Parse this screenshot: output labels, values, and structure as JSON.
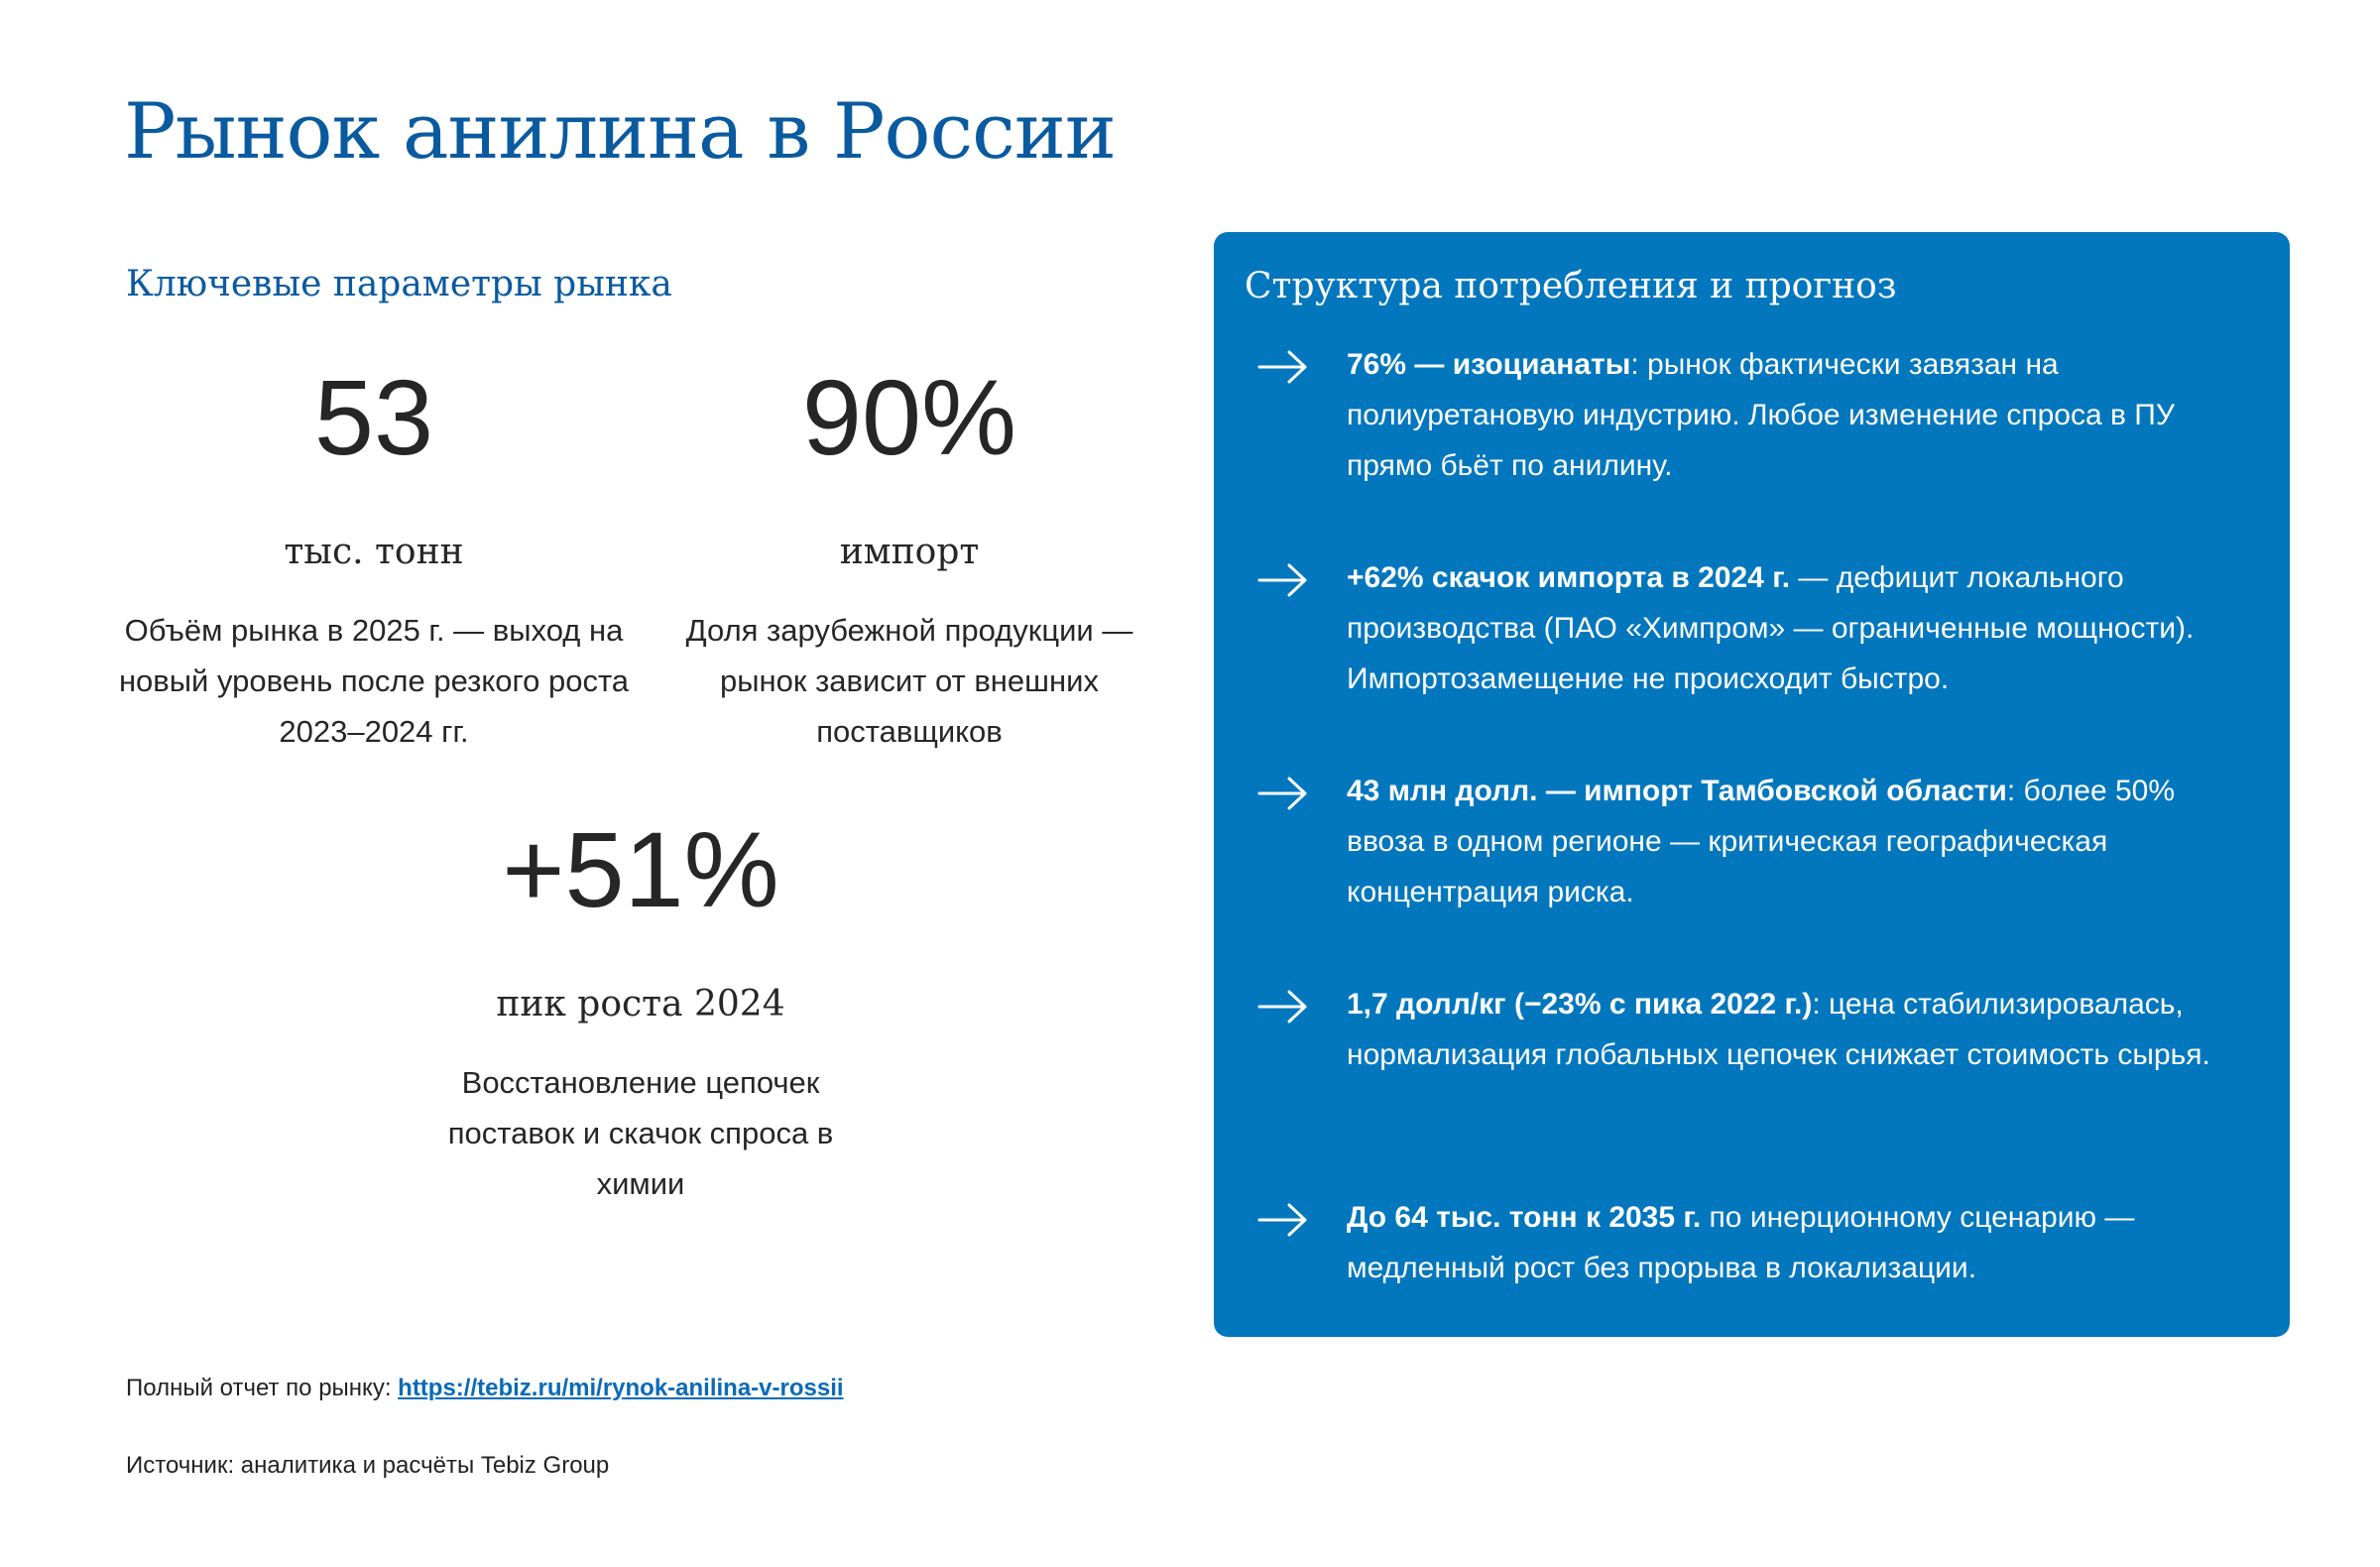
{
  "page": {
    "title": "Рынок анилина в России"
  },
  "key_params": {
    "heading": "Ключевые параметры рынка",
    "stats": [
      {
        "value": "53",
        "unit": "тыс. тонн",
        "description": "Объём рынка в 2025 г. — выход на новый уровень после резкого роста 2023–2024 гг."
      },
      {
        "value": "90%",
        "unit": "импорт",
        "description": "Доля зарубежной продукции — рынок зависит от внешних поставщиков"
      },
      {
        "value": "+51%",
        "unit": "пик роста 2024",
        "description": "Восстановление цепочек поставок и скачок спроса в химии"
      }
    ]
  },
  "panel": {
    "heading": "Структура потребления и прогноз",
    "background_color": "#0277bd",
    "icon": "arrow-right-icon",
    "items": [
      {
        "bold": "76% — изоцианаты",
        "text": ": рынок фактически завязан на полиуретановую индустрию. Любое изменение спроса в ПУ прямо бьёт по анилину."
      },
      {
        "bold": "+62% скачок импорта в 2024 г.",
        "text": " — дефицит локального производства (ПАО «Химпром» — ограниченные мощности). Импортозамещение не происходит быстро."
      },
      {
        "bold": "43 млн долл. — импорт Тамбовской области",
        "text": ": более 50% ввоза в одном регионе — критическая географическая концентрация риска."
      },
      {
        "bold": "1,7 долл/кг (−23% с пика 2022 г.)",
        "text": ": цена стабилизировалась, нормализация глобальных цепочек снижает стоимость сырья."
      },
      {
        "bold": "До 64 тыс. тонн к 2035 г.",
        "text": " по инерционному сценарию — медленный рост без прорыва в локализации."
      }
    ]
  },
  "footer": {
    "report_label": "Полный отчет по рынку: ",
    "report_link": "https://tebiz.ru/mi/rynok-anilina-v-rossii",
    "source": "Источник: аналитика и расчёты Tebiz Group"
  }
}
